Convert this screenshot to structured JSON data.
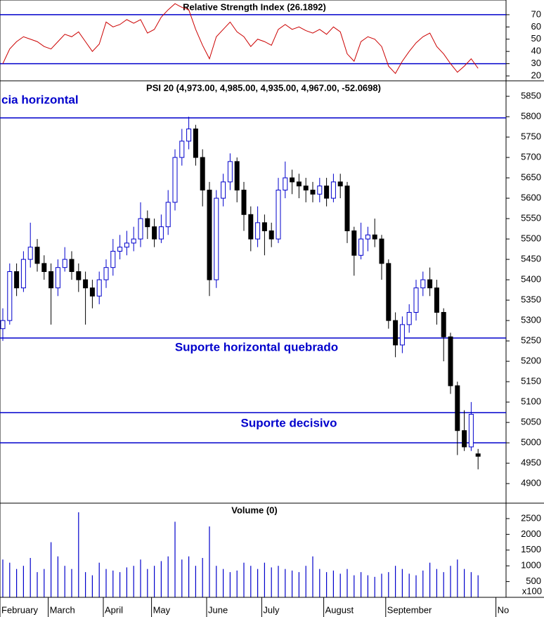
{
  "chart_data": [
    {
      "type": "line",
      "title": "Relative Strength Index (26.1892)",
      "color": "#cc0000",
      "values": [
        30,
        42,
        48,
        52,
        50,
        48,
        44,
        42,
        48,
        54,
        52,
        56,
        48,
        40,
        46,
        64,
        60,
        62,
        66,
        63,
        66,
        55,
        58,
        68,
        74,
        79,
        76,
        74,
        58,
        45,
        34,
        52,
        58,
        64,
        56,
        52,
        44,
        50,
        48,
        45,
        58,
        62,
        58,
        60,
        57,
        55,
        58,
        54,
        60,
        56,
        38,
        32,
        48,
        52,
        50,
        44,
        28,
        22,
        32,
        40,
        47,
        52,
        55,
        44,
        38,
        30,
        23,
        28,
        34,
        26.1892,
        null,
        null,
        null
      ],
      "ylim": [
        16,
        82
      ],
      "yticks": [
        20,
        30,
        40,
        50,
        60,
        70
      ],
      "hlines": [
        70,
        30
      ],
      "hline_color": "#0000cc"
    },
    {
      "type": "candlestick",
      "title": "PSI 20 (4,973.00, 4,985.00, 4,935.00, 4,967.00, -52.0698)",
      "up_color": "#0000cc",
      "down_color": "#000000",
      "open": [
        5280,
        5300,
        5420,
        5380,
        5450,
        5480,
        5440,
        5420,
        5380,
        5430,
        5450,
        5420,
        5400,
        5380,
        5360,
        5400,
        5430,
        5470,
        5480,
        5490,
        5500,
        5550,
        5530,
        5500,
        5530,
        5590,
        5700,
        5740,
        5770,
        5700,
        5620,
        5400,
        5600,
        5640,
        5690,
        5620,
        5560,
        5500,
        5540,
        5520,
        5500,
        5620,
        5650,
        5640,
        5630,
        5620,
        5610,
        5630,
        5600,
        5640,
        5630,
        5520,
        5460,
        5500,
        5510,
        5500,
        5440,
        5300,
        5240,
        5290,
        5320,
        5380,
        5400,
        5380,
        5320,
        5260,
        5140,
        5030,
        4990,
        4973,
        null,
        null,
        null
      ],
      "high": [
        5330,
        5440,
        5440,
        5470,
        5540,
        5500,
        5460,
        5440,
        5450,
        5480,
        5470,
        5440,
        5420,
        5400,
        5420,
        5450,
        5500,
        5510,
        5520,
        5530,
        5590,
        5570,
        5550,
        5560,
        5620,
        5720,
        5770,
        5800,
        5780,
        5720,
        5640,
        5620,
        5660,
        5710,
        5700,
        5640,
        5580,
        5580,
        5560,
        5540,
        5650,
        5690,
        5670,
        5660,
        5650,
        5640,
        5650,
        5650,
        5660,
        5660,
        5640,
        5530,
        5540,
        5530,
        5550,
        5510,
        5450,
        5320,
        5310,
        5340,
        5400,
        5420,
        5430,
        5400,
        5330,
        5270,
        5150,
        5080,
        5100,
        4985,
        null,
        null,
        null
      ],
      "low": [
        5250,
        5290,
        5360,
        5370,
        5430,
        5420,
        5400,
        5290,
        5360,
        5420,
        5400,
        5370,
        5290,
        5330,
        5340,
        5380,
        5410,
        5450,
        5460,
        5470,
        5480,
        5500,
        5480,
        5490,
        5510,
        5570,
        5680,
        5720,
        5680,
        5580,
        5360,
        5380,
        5580,
        5620,
        5590,
        5520,
        5470,
        5480,
        5460,
        5480,
        5490,
        5600,
        5610,
        5600,
        5590,
        5590,
        5590,
        5580,
        5590,
        5600,
        5490,
        5410,
        5450,
        5470,
        5480,
        5400,
        5280,
        5210,
        5220,
        5270,
        5300,
        5360,
        5360,
        5290,
        5200,
        5120,
        4970,
        4980,
        4980,
        4935,
        null,
        null,
        null
      ],
      "close": [
        5300,
        5420,
        5380,
        5450,
        5480,
        5440,
        5420,
        5380,
        5430,
        5450,
        5420,
        5400,
        5380,
        5360,
        5400,
        5430,
        5470,
        5480,
        5490,
        5500,
        5550,
        5530,
        5500,
        5530,
        5590,
        5700,
        5740,
        5770,
        5700,
        5620,
        5400,
        5600,
        5640,
        5690,
        5620,
        5560,
        5500,
        5540,
        5520,
        5500,
        5620,
        5650,
        5640,
        5630,
        5620,
        5610,
        5630,
        5600,
        5640,
        5630,
        5520,
        5460,
        5500,
        5510,
        5500,
        5440,
        5300,
        5240,
        5290,
        5320,
        5380,
        5400,
        5380,
        5320,
        5260,
        5140,
        5030,
        4990,
        5070,
        4967,
        null,
        null,
        null
      ],
      "ylim": [
        4852,
        5888
      ],
      "yticks": [
        4900,
        4950,
        5000,
        5050,
        5100,
        5150,
        5200,
        5250,
        5300,
        5350,
        5400,
        5450,
        5500,
        5550,
        5600,
        5650,
        5700,
        5750,
        5800,
        5850
      ],
      "hlines": [
        5797,
        5257,
        5074,
        5000
      ],
      "hline_color": "#0000cc",
      "annotations": [
        "cia horizontal",
        "Suporte horizontal quebrado",
        "Suporte decisivo"
      ]
    },
    {
      "type": "bar",
      "title": "Volume (0)",
      "unit_label": "x100",
      "color": "#0000cc",
      "categories": [
        "February",
        null,
        null,
        null,
        null,
        null,
        null,
        "March",
        null,
        null,
        null,
        null,
        null,
        null,
        null,
        "April",
        null,
        null,
        null,
        null,
        null,
        null,
        "May",
        null,
        null,
        null,
        null,
        null,
        null,
        null,
        "June",
        null,
        null,
        null,
        null,
        null,
        null,
        null,
        "July",
        null,
        null,
        null,
        null,
        null,
        null,
        null,
        null,
        "August",
        null,
        null,
        null,
        null,
        null,
        null,
        null,
        null,
        "September",
        null,
        null,
        null,
        null,
        null,
        null,
        null,
        null,
        null,
        null,
        null,
        null,
        null,
        null,
        null,
        "No"
      ],
      "values": [
        1200,
        1100,
        900,
        1000,
        1250,
        800,
        900,
        1750,
        1300,
        1000,
        900,
        2700,
        800,
        700,
        1100,
        900,
        850,
        800,
        950,
        1000,
        1200,
        900,
        1000,
        1150,
        1300,
        2400,
        1200,
        1300,
        1000,
        1250,
        2250,
        1000,
        900,
        800,
        850,
        1100,
        1000,
        900,
        1100,
        950,
        1000,
        900,
        850,
        800,
        1000,
        1300,
        900,
        800,
        850,
        750,
        900,
        700,
        800,
        700,
        650,
        750,
        800,
        1000,
        900,
        750,
        700,
        850,
        1100,
        900,
        800,
        1000,
        1200,
        900,
        800,
        700,
        null,
        null,
        null
      ],
      "ylim": [
        0,
        2990
      ],
      "yticks": [
        500,
        1000,
        1500,
        2000,
        2500
      ]
    }
  ]
}
